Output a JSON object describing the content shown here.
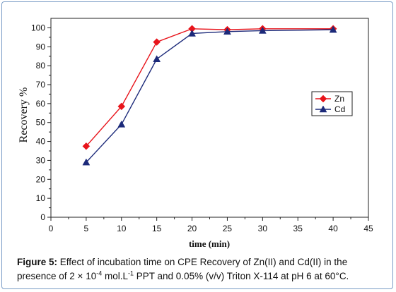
{
  "chart_data": {
    "type": "line",
    "xlabel": "time (min)",
    "ylabel": "Recovery %",
    "xlim": [
      0,
      45
    ],
    "ylim": [
      0,
      105
    ],
    "x_ticks": [
      "0",
      "5",
      "10",
      "15",
      "20",
      "25",
      "30",
      "35",
      "40",
      "45"
    ],
    "y_ticks": [
      "0",
      "10",
      "20",
      "30",
      "40",
      "50",
      "60",
      "70",
      "80",
      "90",
      "100"
    ],
    "grid": false,
    "legend_position": "right",
    "x": [
      5,
      10,
      15,
      20,
      25,
      30,
      40
    ],
    "series": [
      {
        "name": "Zn",
        "color": "#e8141b",
        "marker": "diamond",
        "values": [
          37.5,
          58.5,
          92.5,
          99.5,
          99.0,
          99.5,
          99.5
        ]
      },
      {
        "name": "Cd",
        "color": "#1c2a7a",
        "marker": "triangle",
        "values": [
          29,
          49,
          83.5,
          97,
          98,
          98.5,
          99
        ]
      }
    ]
  },
  "caption": {
    "lead": "Figure 5:",
    "part1": " Effect of incubation time on CPE Recovery of Zn(II) and Cd(II) in the presence of 2 × 10",
    "sup1": "-4",
    "part2": " mol.L",
    "sup2": "-1",
    "part3": " PPT and 0.05% (v/v) Triton X-114 at pH 6 at 60°C."
  }
}
